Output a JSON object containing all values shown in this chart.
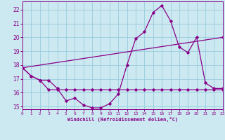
{
  "xlabel": "Windchill (Refroidissement éolien,°C)",
  "bg_color": "#cce8f0",
  "grid_color": "#99ccdd",
  "line_color": "#880088",
  "xmin": 0,
  "xmax": 23,
  "ymin": 14.8,
  "ymax": 22.6,
  "yticks": [
    15,
    16,
    17,
    18,
    19,
    20,
    21,
    22
  ],
  "xticks": [
    0,
    1,
    2,
    3,
    4,
    5,
    6,
    7,
    8,
    9,
    10,
    11,
    12,
    13,
    14,
    15,
    16,
    17,
    18,
    19,
    20,
    21,
    22,
    23
  ],
  "series1_x": [
    0,
    1,
    2,
    3,
    4,
    5,
    6,
    7,
    8,
    9,
    10,
    11,
    12,
    13,
    14,
    15,
    16,
    17,
    18,
    19,
    20,
    21,
    22,
    23
  ],
  "series1_y": [
    17.8,
    17.2,
    16.9,
    16.9,
    16.3,
    15.4,
    15.6,
    15.1,
    14.9,
    14.9,
    15.2,
    15.9,
    18.0,
    19.9,
    20.4,
    21.8,
    22.3,
    21.2,
    19.3,
    18.9,
    20.0,
    16.7,
    16.3,
    16.3
  ],
  "series2_x": [
    0,
    1,
    2,
    3,
    4,
    5,
    6,
    7,
    8,
    9,
    10,
    11,
    12,
    13,
    14,
    15,
    16,
    17,
    18,
    19,
    20,
    21,
    22,
    23
  ],
  "series2_y": [
    17.8,
    17.2,
    16.9,
    16.2,
    16.2,
    16.2,
    16.2,
    16.2,
    16.2,
    16.2,
    16.2,
    16.2,
    16.2,
    16.2,
    16.2,
    16.2,
    16.2,
    16.2,
    16.2,
    16.2,
    16.2,
    16.2,
    16.2,
    16.2
  ],
  "series3_x": [
    0,
    23
  ],
  "series3_y": [
    17.8,
    20.0
  ]
}
